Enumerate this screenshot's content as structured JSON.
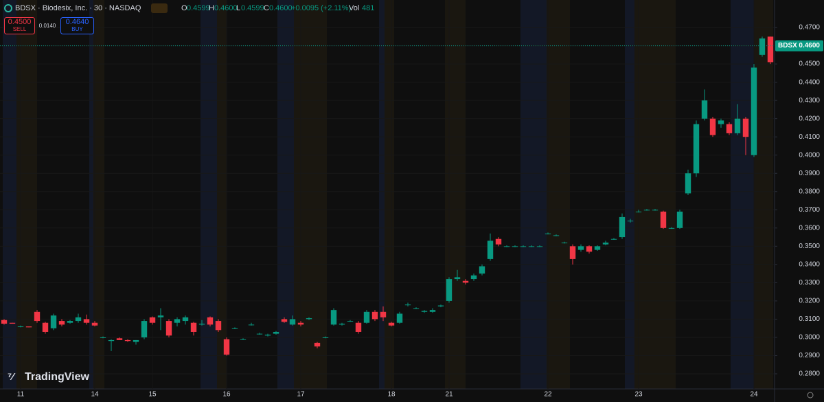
{
  "header": {
    "symbol": "BDSX · Biodesix, Inc. · 30 · NASDAQ",
    "o_key": "O",
    "o": "0.4599",
    "h_key": "H",
    "h": "0.4600",
    "l_key": "L",
    "l": "0.4599",
    "c_key": "C",
    "c": "0.4600",
    "change": "+0.0095 (+2.11%)",
    "vol_key": "Vol",
    "vol": "481"
  },
  "trade_panel": {
    "sell_price": "0.4500",
    "sell": "SELL",
    "spread": "0.0140",
    "buy_price": "0.4640",
    "buy": "BUY"
  },
  "watermark": "TradingView",
  "chart_data": {
    "type": "candlestick",
    "up_color": "#089981",
    "down_color": "#f23645",
    "grid": true,
    "symbol_tag": "BDSX",
    "last_price": {
      "value": 0.46,
      "label": "0.4600"
    },
    "ylim": [
      0.2717,
      0.4851
    ],
    "yticks": [
      {
        "value": 0.28,
        "label": "0.2800"
      },
      {
        "value": 0.29,
        "label": "0.2900"
      },
      {
        "value": 0.3,
        "label": "0.3000"
      },
      {
        "value": 0.31,
        "label": "0.3100"
      },
      {
        "value": 0.32,
        "label": "0.3200"
      },
      {
        "value": 0.33,
        "label": "0.3300"
      },
      {
        "value": 0.34,
        "label": "0.3400"
      },
      {
        "value": 0.35,
        "label": "0.3500"
      },
      {
        "value": 0.36,
        "label": "0.3600"
      },
      {
        "value": 0.37,
        "label": "0.3700"
      },
      {
        "value": 0.38,
        "label": "0.3800"
      },
      {
        "value": 0.39,
        "label": "0.3900"
      },
      {
        "value": 0.4,
        "label": "0.4000"
      },
      {
        "value": 0.41,
        "label": "0.4100"
      },
      {
        "value": 0.42,
        "label": "0.4200"
      },
      {
        "value": 0.43,
        "label": "0.4300"
      },
      {
        "value": 0.44,
        "label": "0.4400"
      },
      {
        "value": 0.45,
        "label": "0.4500"
      },
      {
        "value": 0.46,
        "label": "0.4600"
      },
      {
        "value": 0.47,
        "label": "0.4700"
      }
    ],
    "categories": [
      null,
      null,
      "11",
      null,
      null,
      null,
      null,
      null,
      null,
      null,
      null,
      "14",
      null,
      null,
      null,
      null,
      null,
      null,
      "15",
      null,
      null,
      null,
      null,
      null,
      null,
      null,
      null,
      "16",
      null,
      null,
      null,
      null,
      null,
      null,
      null,
      null,
      "17",
      null,
      null,
      null,
      null,
      null,
      null,
      null,
      null,
      null,
      null,
      "18",
      null,
      null,
      null,
      null,
      null,
      null,
      "21",
      null,
      null,
      null,
      null,
      null,
      null,
      null,
      null,
      null,
      null,
      null,
      "22",
      null,
      null,
      null,
      null,
      null,
      null,
      null,
      null,
      null,
      null,
      "23",
      null,
      null,
      null,
      null,
      null,
      null,
      null,
      null,
      null,
      null,
      null,
      null,
      null,
      "24",
      null,
      null
    ],
    "candles": [
      [
        0.3095,
        0.31,
        0.307,
        0.3075
      ],
      [
        0.308,
        0.308,
        0.3075,
        0.3075
      ],
      [
        0.306,
        0.3065,
        0.3055,
        0.306
      ],
      [
        0.306,
        0.306,
        0.3055,
        0.3055
      ],
      [
        0.314,
        0.315,
        0.308,
        0.309
      ],
      [
        0.308,
        0.3085,
        0.302,
        0.303
      ],
      [
        0.305,
        0.313,
        0.304,
        0.312
      ],
      [
        0.309,
        0.31,
        0.306,
        0.307
      ],
      [
        0.308,
        0.3095,
        0.3075,
        0.309
      ],
      [
        0.309,
        0.313,
        0.308,
        0.311
      ],
      [
        0.31,
        0.3125,
        0.307,
        0.308
      ],
      [
        0.308,
        0.309,
        0.306,
        0.3065
      ],
      [
        0.3,
        0.3005,
        0.2995,
        0.3
      ],
      [
        0.298,
        0.299,
        0.2925,
        0.2985
      ],
      [
        0.2995,
        0.3,
        0.2985,
        0.2985
      ],
      [
        0.2985,
        0.299,
        0.2975,
        0.298
      ],
      [
        0.2975,
        0.2985,
        0.296,
        0.2985
      ],
      [
        0.3,
        0.31,
        0.299,
        0.309
      ],
      [
        0.311,
        0.3115,
        0.307,
        0.308
      ],
      [
        0.311,
        0.316,
        0.304,
        0.312
      ],
      [
        0.309,
        0.31,
        0.3,
        0.301
      ],
      [
        0.308,
        0.311,
        0.306,
        0.31
      ],
      [
        0.309,
        0.312,
        0.307,
        0.311
      ],
      [
        0.308,
        0.3085,
        0.301,
        0.303
      ],
      [
        0.307,
        0.3095,
        0.3065,
        0.3075
      ],
      [
        0.311,
        0.3115,
        0.306,
        0.307
      ],
      [
        0.309,
        0.31,
        0.303,
        0.304
      ],
      [
        0.299,
        0.3,
        0.29,
        0.2905
      ],
      [
        0.305,
        0.3055,
        0.3045,
        0.305
      ],
      [
        0.299,
        0.2995,
        0.2985,
        0.299
      ],
      [
        0.307,
        0.308,
        0.3065,
        0.307
      ],
      [
        0.302,
        0.3025,
        0.3015,
        0.302
      ],
      [
        0.301,
        0.302,
        0.3005,
        0.3015
      ],
      [
        0.302,
        0.3035,
        0.3015,
        0.303
      ],
      [
        0.31,
        0.311,
        0.308,
        0.3085
      ],
      [
        0.307,
        0.312,
        0.3065,
        0.31
      ],
      [
        0.308,
        0.309,
        0.306,
        0.307
      ],
      [
        0.31,
        0.311,
        0.3095,
        0.3105
      ],
      [
        0.297,
        0.2975,
        0.294,
        0.295
      ],
      [
        0.3,
        0.3005,
        0.2995,
        0.3
      ],
      [
        0.307,
        0.316,
        0.3065,
        0.315
      ],
      [
        0.307,
        0.308,
        0.3065,
        0.3075
      ],
      [
        0.309,
        0.3095,
        0.3085,
        0.309
      ],
      [
        0.308,
        0.309,
        0.302,
        0.303
      ],
      [
        0.308,
        0.315,
        0.3075,
        0.314
      ],
      [
        0.314,
        0.315,
        0.309,
        0.31
      ],
      [
        0.314,
        0.317,
        0.309,
        0.311
      ],
      [
        0.308,
        0.3085,
        0.306,
        0.3065
      ],
      [
        0.308,
        0.314,
        0.3075,
        0.313
      ],
      [
        0.318,
        0.319,
        0.317,
        0.318
      ],
      [
        0.316,
        0.3165,
        0.3155,
        0.316
      ],
      [
        0.314,
        0.315,
        0.3135,
        0.3145
      ],
      [
        0.314,
        0.316,
        0.3135,
        0.315
      ],
      [
        0.317,
        0.318,
        0.3165,
        0.3175
      ],
      [
        0.32,
        0.333,
        0.319,
        0.332
      ],
      [
        0.332,
        0.337,
        0.331,
        0.333
      ],
      [
        0.331,
        0.332,
        0.329,
        0.33
      ],
      [
        0.332,
        0.335,
        0.331,
        0.334
      ],
      [
        0.335,
        0.34,
        0.334,
        0.339
      ],
      [
        0.343,
        0.357,
        0.342,
        0.353
      ],
      [
        0.354,
        0.355,
        0.35,
        0.351
      ],
      [
        0.35,
        0.3505,
        0.3495,
        0.35
      ],
      [
        0.35,
        0.3505,
        0.3495,
        0.35
      ],
      [
        0.35,
        0.3505,
        0.3495,
        0.35
      ],
      [
        0.35,
        0.3505,
        0.3495,
        0.35
      ],
      [
        0.35,
        0.3505,
        0.3495,
        0.35
      ],
      [
        0.357,
        0.3575,
        0.3565,
        0.357
      ],
      [
        0.356,
        0.3565,
        0.3555,
        0.356
      ],
      [
        0.352,
        0.3525,
        0.3515,
        0.352
      ],
      [
        0.35,
        0.351,
        0.34,
        0.343
      ],
      [
        0.348,
        0.351,
        0.347,
        0.35
      ],
      [
        0.35,
        0.3505,
        0.346,
        0.347
      ],
      [
        0.348,
        0.3505,
        0.3475,
        0.35
      ],
      [
        0.351,
        0.353,
        0.3505,
        0.352
      ],
      [
        0.354,
        0.3545,
        0.3535,
        0.354
      ],
      [
        0.355,
        0.368,
        0.354,
        0.366
      ],
      [
        0.364,
        0.365,
        0.363,
        0.364
      ],
      [
        0.369,
        0.37,
        0.3685,
        0.369
      ],
      [
        0.37,
        0.3705,
        0.3695,
        0.37
      ],
      [
        0.37,
        0.3705,
        0.3695,
        0.37
      ],
      [
        0.369,
        0.3695,
        0.3595,
        0.36
      ],
      [
        0.36,
        0.3605,
        0.3595,
        0.36
      ],
      [
        0.36,
        0.37,
        0.3595,
        0.369
      ],
      [
        0.379,
        0.392,
        0.378,
        0.39
      ],
      [
        0.39,
        0.419,
        0.388,
        0.417
      ],
      [
        0.42,
        0.436,
        0.419,
        0.43
      ],
      [
        0.42,
        0.421,
        0.41,
        0.411
      ],
      [
        0.417,
        0.42,
        0.415,
        0.419
      ],
      [
        0.417,
        0.418,
        0.411,
        0.412
      ],
      [
        0.412,
        0.428,
        0.411,
        0.42
      ],
      [
        0.42,
        0.421,
        0.4,
        0.41
      ],
      [
        0.4,
        0.45,
        0.399,
        0.448
      ],
      [
        0.455,
        0.465,
        0.454,
        0.464
      ],
      [
        0.465,
        0.465,
        0.45,
        0.451
      ]
    ]
  }
}
